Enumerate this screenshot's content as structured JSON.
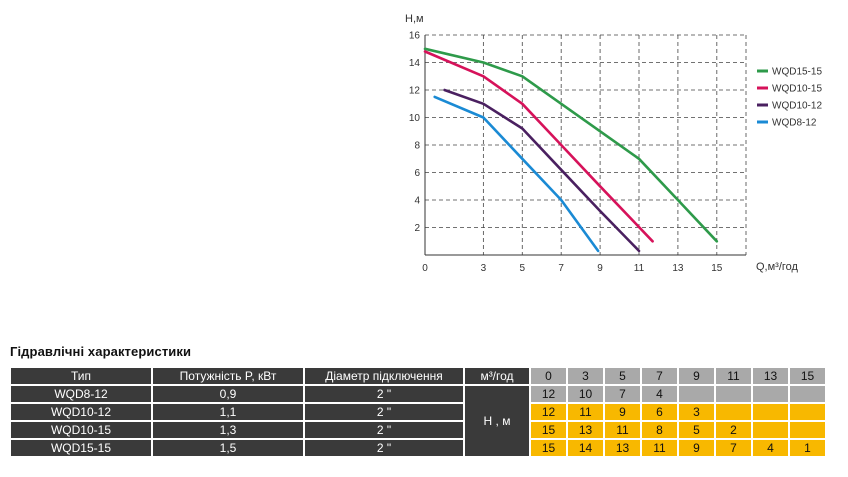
{
  "chart_data": {
    "type": "line",
    "ylabel": "Н,м",
    "xlabel": "Q,м³/год",
    "xticks": [
      0,
      3,
      5,
      7,
      9,
      11,
      13,
      15
    ],
    "yticks": [
      2,
      4,
      6,
      8,
      10,
      12,
      14,
      16
    ],
    "xlim": [
      0,
      16.5
    ],
    "ylim": [
      0,
      16
    ],
    "grid": true,
    "legend_position": "right",
    "series": [
      {
        "name": "WQD15-15",
        "color": "#2e9a4a",
        "x": [
          0,
          3,
          5,
          7,
          9,
          11,
          13,
          15
        ],
        "y": [
          15,
          14,
          13,
          11,
          9,
          7,
          4,
          1
        ]
      },
      {
        "name": "WQD10-15",
        "color": "#d6125a",
        "x": [
          0,
          3,
          5,
          7,
          9,
          11.7
        ],
        "y": [
          14.8,
          13,
          11,
          8,
          5,
          1
        ]
      },
      {
        "name": "WQD10-12",
        "color": "#4a2060",
        "x": [
          1,
          3,
          5,
          7,
          9,
          11
        ],
        "y": [
          12,
          11,
          9.2,
          6.2,
          3.2,
          0.3
        ]
      },
      {
        "name": "WQD8-12",
        "color": "#1a8ad4",
        "x": [
          0.5,
          3,
          5,
          7,
          8.9
        ],
        "y": [
          11.5,
          10,
          7,
          4,
          0.3
        ]
      }
    ]
  },
  "table": {
    "title": "Гідравлічні характеристики",
    "headers": {
      "type": "Тип",
      "power": "Потужність P, кВт",
      "diameter": "Діаметр підключення",
      "flow": "м³/год"
    },
    "flow_values": [
      "0",
      "3",
      "5",
      "7",
      "9",
      "11",
      "13",
      "15"
    ],
    "head_label": "Н , м",
    "rows": [
      {
        "type": "WQD8-12",
        "power": "0,9",
        "diameter": "2 \"",
        "values": [
          "12",
          "10",
          "7",
          "4",
          "",
          "",
          "",
          ""
        ]
      },
      {
        "type": "WQD10-12",
        "power": "1,1",
        "diameter": "2 \"",
        "values": [
          "12",
          "11",
          "9",
          "6",
          "3",
          "",
          "",
          ""
        ]
      },
      {
        "type": "WQD10-15",
        "power": "1,3",
        "diameter": "2 \"",
        "values": [
          "15",
          "13",
          "11",
          "8",
          "5",
          "2",
          "",
          ""
        ]
      },
      {
        "type": "WQD15-15",
        "power": "1,5",
        "diameter": "2 \"",
        "values": [
          "15",
          "14",
          "13",
          "11",
          "9",
          "7",
          "4",
          "1"
        ]
      }
    ]
  }
}
